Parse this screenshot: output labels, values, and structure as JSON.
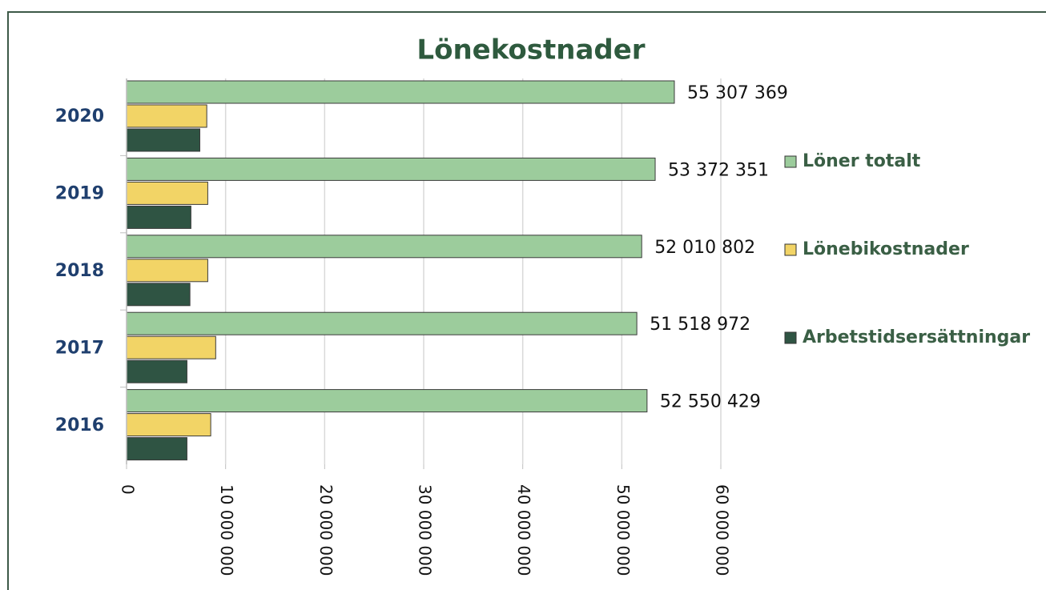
{
  "chart_data": {
    "type": "bar",
    "orientation": "horizontal",
    "title": "Lönekostnader",
    "categories": [
      "2016",
      "2017",
      "2018",
      "2019",
      "2020"
    ],
    "series": [
      {
        "name": "Löner totalt",
        "color": "#9ccc9c",
        "values": [
          52550429,
          51518972,
          52010802,
          53372351,
          55307369
        ],
        "value_labels": [
          "52 550 429",
          "51 518 972",
          "52 010 802",
          "53 372 351",
          "55 307 369"
        ]
      },
      {
        "name": "Lönebikostnader",
        "color": "#f2d466",
        "values": [
          8500000,
          9000000,
          8200000,
          8200000,
          8100000
        ]
      },
      {
        "name": "Arbetstidsersättningar",
        "color": "#2f5443",
        "values": [
          6100000,
          6100000,
          6400000,
          6500000,
          7400000
        ]
      }
    ],
    "xlim": [
      0,
      60000000
    ],
    "xticks": [
      0,
      {
        "value": 10000000,
        "label": "10 000 000"
      },
      {
        "value": 20000000,
        "label": "20 000 000"
      },
      {
        "value": 30000000,
        "label": "30 000 000"
      },
      {
        "value": 40000000,
        "label": "40 000 000"
      },
      {
        "value": 50000000,
        "label": "50 000 000"
      },
      {
        "value": 60000000,
        "label": "60 000 000"
      }
    ],
    "grid": true,
    "legend": "right"
  }
}
